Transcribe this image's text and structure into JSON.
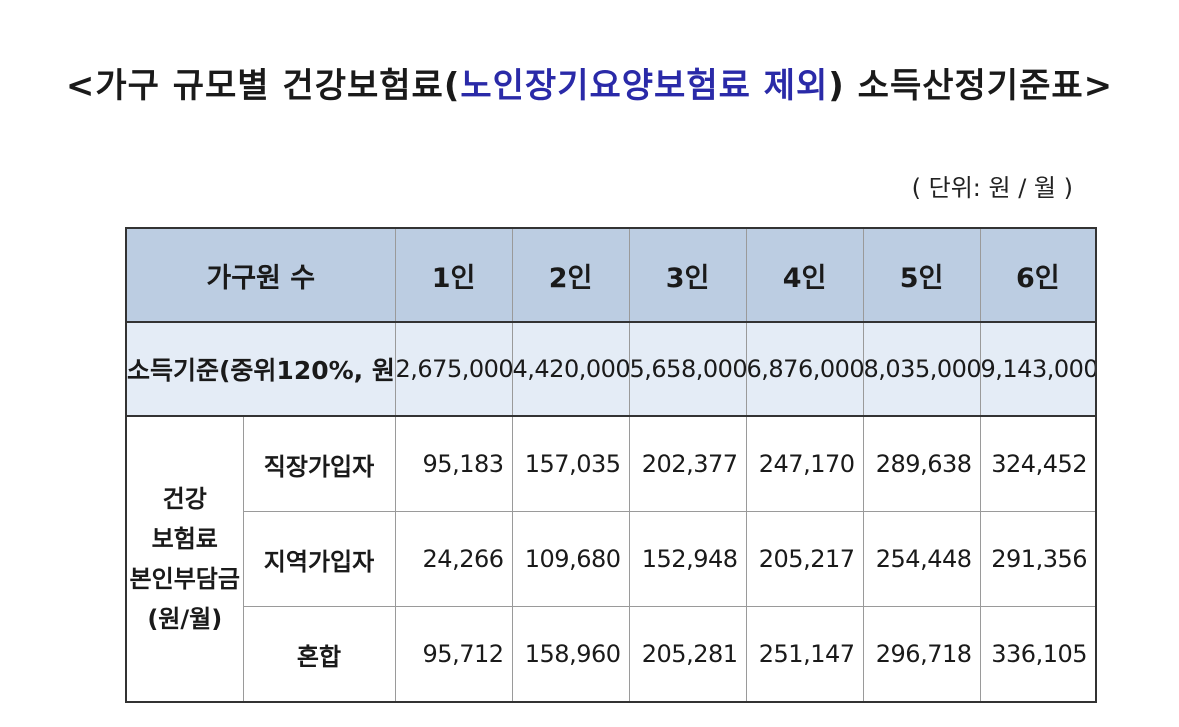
{
  "title": {
    "prefix": "<가구 규모별 건강보험료(",
    "highlight": "노인장기요양보험료 제외",
    "suffix": ") 소득산정기준표>"
  },
  "unit": "( 단위: 원 / 월 )",
  "table": {
    "header": {
      "label": "가구원 수",
      "columns": [
        "1인",
        "2인",
        "3인",
        "4인",
        "5인",
        "6인"
      ]
    },
    "income": {
      "label": "소득기준(중위120%, 원)",
      "values": [
        "2,675,000",
        "4,420,000",
        "5,658,000",
        "6,876,000",
        "8,035,000",
        "9,143,000"
      ]
    },
    "premium": {
      "group_lines": [
        "건강",
        "보험료",
        "본인부담금",
        "(원/월)"
      ],
      "rows": [
        {
          "label": "직장가입자",
          "values": [
            "95,183",
            "157,035",
            "202,377",
            "247,170",
            "289,638",
            "324,452"
          ]
        },
        {
          "label": "지역가입자",
          "values": [
            "24,266",
            "109,680",
            "152,948",
            "205,217",
            "254,448",
            "291,356"
          ]
        },
        {
          "label": "혼합",
          "values": [
            "95,712",
            "158,960",
            "205,281",
            "251,147",
            "296,718",
            "336,105"
          ]
        }
      ]
    }
  },
  "colors": {
    "header_bg": "#bccde2",
    "income_bg": "#e4ecf6",
    "title_highlight": "#2a2aa8"
  }
}
